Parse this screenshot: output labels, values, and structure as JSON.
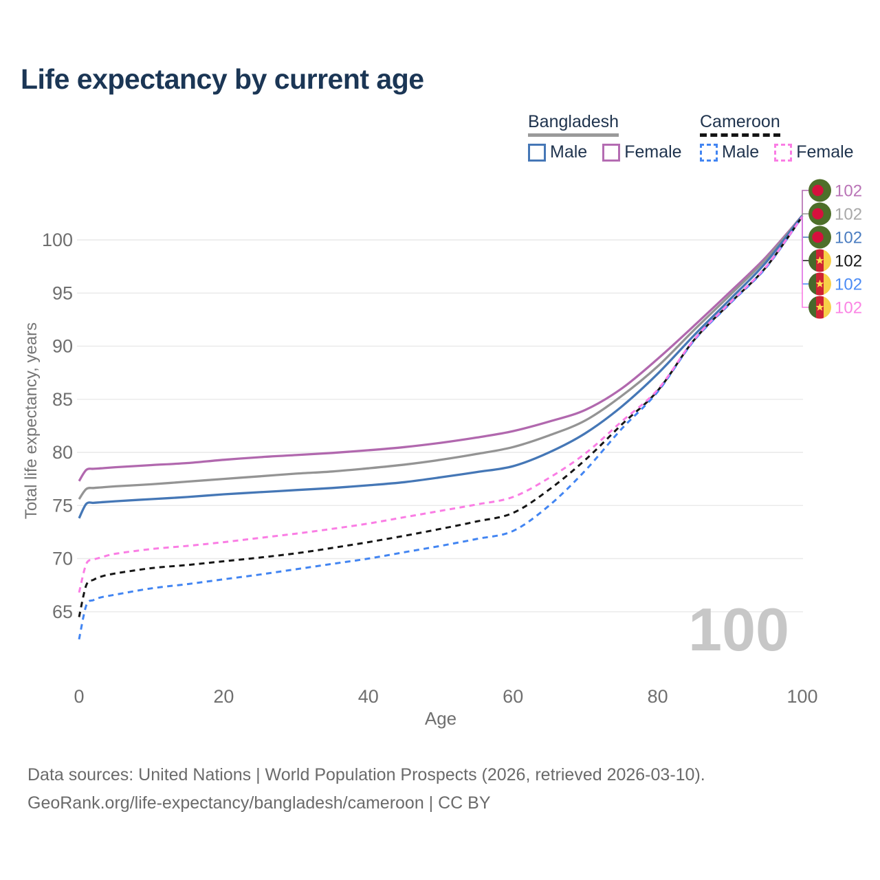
{
  "title": "Life expectancy by current age",
  "legend": {
    "groups": [
      {
        "label": "Bangladesh",
        "underline_style": "solid",
        "underline_color": "#9a9a9a",
        "items": [
          {
            "label": "Male",
            "color": "#4577b6",
            "dash": false
          },
          {
            "label": "Female",
            "color": "#b46cb2",
            "dash": false
          }
        ]
      },
      {
        "label": "Cameroon",
        "underline_style": "dashed",
        "underline_color": "#151515",
        "items": [
          {
            "label": "Male",
            "color": "#4285f2",
            "dash": true
          },
          {
            "label": "Female",
            "color": "#fa7de4",
            "dash": true
          }
        ]
      }
    ]
  },
  "chart_data": {
    "type": "line",
    "title": "Life expectancy by current age",
    "xlabel": "Age",
    "ylabel": "Total life expectancy, years",
    "x_ticks": [
      0,
      20,
      40,
      60,
      80,
      100
    ],
    "y_ticks": [
      65,
      70,
      75,
      80,
      85,
      90,
      95,
      100
    ],
    "xlim": [
      0,
      100
    ],
    "ylim": [
      62,
      103.5
    ],
    "grid": "horizontal",
    "legend_position": "top-right",
    "ages": [
      0,
      1,
      2,
      3,
      5,
      10,
      15,
      20,
      25,
      30,
      35,
      40,
      45,
      50,
      55,
      60,
      65,
      70,
      75,
      80,
      85,
      90,
      95,
      100
    ],
    "series": [
      {
        "name": "Bangladesh Female",
        "country": "Bangladesh",
        "sex": "Female",
        "color": "#b168ae",
        "label_color": "#b973b6",
        "dash": false,
        "flag": "bangladesh",
        "end_label": "102",
        "values": [
          77.3,
          78.35,
          78.45,
          78.5,
          78.6,
          78.8,
          79.0,
          79.3,
          79.55,
          79.75,
          79.95,
          80.2,
          80.5,
          80.9,
          81.4,
          82.0,
          82.9,
          84.0,
          86.0,
          88.8,
          91.9,
          95.1,
          98.4,
          102.3
        ]
      },
      {
        "name": "Bangladesh (both sexes)",
        "country": "Bangladesh",
        "sex": "Both",
        "color": "#949494",
        "label_color": "#a8a8a8",
        "dash": false,
        "flag": "bangladesh",
        "end_label": "102",
        "values": [
          75.6,
          76.55,
          76.65,
          76.7,
          76.8,
          77.0,
          77.25,
          77.5,
          77.75,
          78.0,
          78.2,
          78.5,
          78.85,
          79.3,
          79.85,
          80.5,
          81.6,
          83.0,
          85.3,
          88.1,
          91.5,
          94.8,
          98.2,
          102.3
        ]
      },
      {
        "name": "Bangladesh Male",
        "country": "Bangladesh",
        "sex": "Male",
        "color": "#4577b6",
        "label_color": "#4a7cc0",
        "dash": false,
        "flag": "bangladesh",
        "end_label": "102",
        "values": [
          73.8,
          75.15,
          75.25,
          75.3,
          75.4,
          75.6,
          75.8,
          76.05,
          76.25,
          76.45,
          76.65,
          76.9,
          77.2,
          77.65,
          78.15,
          78.7,
          80.0,
          81.8,
          84.3,
          87.4,
          91.0,
          94.4,
          97.9,
          102.3
        ]
      },
      {
        "name": "Cameroon (both sexes)",
        "country": "Cameroon",
        "sex": "Both",
        "color": "#161616",
        "label_color": "#161616",
        "dash": true,
        "flag": "cameroon",
        "end_label": "102",
        "values": [
          64.5,
          67.5,
          68.0,
          68.3,
          68.6,
          69.1,
          69.4,
          69.75,
          70.1,
          70.5,
          71.0,
          71.55,
          72.15,
          72.8,
          73.5,
          74.3,
          76.5,
          79.3,
          82.6,
          85.8,
          90.55,
          94.05,
          97.45,
          102.2
        ]
      },
      {
        "name": "Cameroon Male",
        "country": "Cameroon",
        "sex": "Male",
        "color": "#4285f2",
        "label_color": "#4b8bf5",
        "dash": true,
        "flag": "cameroon",
        "end_label": "102",
        "values": [
          62.4,
          65.6,
          66.1,
          66.35,
          66.6,
          67.2,
          67.6,
          68.05,
          68.5,
          69.0,
          69.5,
          70.0,
          70.6,
          71.2,
          71.85,
          72.6,
          75.0,
          78.3,
          82.2,
          85.7,
          90.5,
          94.0,
          97.4,
          102.2
        ]
      },
      {
        "name": "Cameroon Female",
        "country": "Cameroon",
        "sex": "Female",
        "color": "#fa7de4",
        "label_color": "#fb84e4",
        "dash": true,
        "flag": "cameroon",
        "end_label": "102",
        "values": [
          66.8,
          69.5,
          69.9,
          70.1,
          70.45,
          70.9,
          71.2,
          71.55,
          71.95,
          72.35,
          72.8,
          73.3,
          73.9,
          74.5,
          75.1,
          75.8,
          77.6,
          79.9,
          82.9,
          85.9,
          90.6,
          94.1,
          97.5,
          102.2
        ]
      }
    ]
  },
  "watermark": "100",
  "flag_colors": {
    "bangladesh": {
      "field": "#4e6f2a",
      "disc": "#d6103d"
    },
    "cameroon": {
      "green": "#47682b",
      "red": "#cf2334",
      "yellow": "#f7cf48",
      "star": "#ffdf4e"
    }
  },
  "footer": {
    "line1": "Data sources: United Nations | World Population Prospects (2026, retrieved 2026-03-10).",
    "line2": "GeoRank.org/life-expectancy/bangladesh/cameroon | CC BY"
  }
}
